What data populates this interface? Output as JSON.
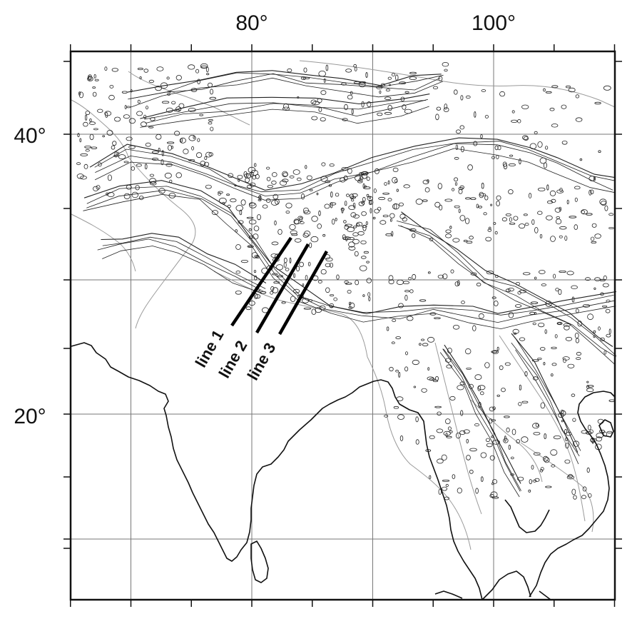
{
  "map": {
    "top_labels": [
      {
        "text": "80°",
        "lon": 80
      },
      {
        "text": "100°",
        "lon": 100
      }
    ],
    "left_labels": [
      {
        "text": "40°",
        "lat": 40
      },
      {
        "text": "20°",
        "lat": 20
      }
    ],
    "grid_lons": [
      70,
      80,
      90,
      100,
      110
    ],
    "grid_lats": [
      10,
      20,
      30,
      40
    ],
    "profile_lines": [
      {
        "label": "line 1"
      },
      {
        "label": "line 2"
      },
      {
        "label": "line 3"
      }
    ],
    "colors": {
      "frame": "#111111",
      "grid": "#777777",
      "coast": "#111111",
      "contour": "#222222",
      "border": "#9a9a9a",
      "profile": "#000000"
    }
  }
}
